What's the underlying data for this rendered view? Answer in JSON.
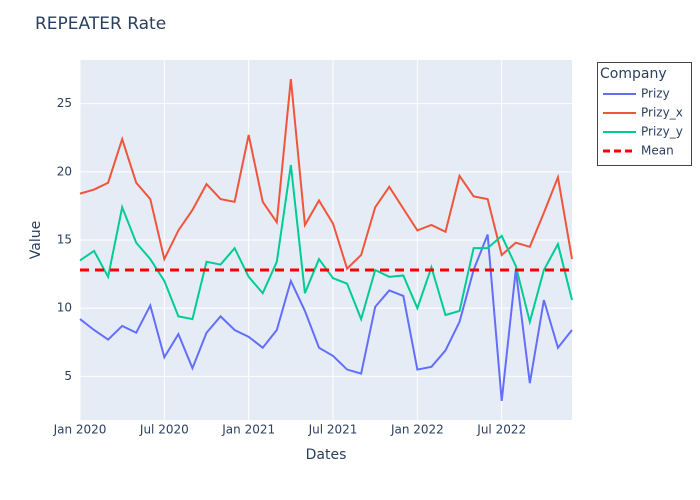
{
  "chart_data": {
    "type": "line",
    "title": "REPEATER Rate",
    "x_label": "Dates",
    "y_label": "Value",
    "legend_title": "Company",
    "legend": "outside-right",
    "grid": true,
    "x": [
      "2020-01",
      "2020-02",
      "2020-03",
      "2020-04",
      "2020-05",
      "2020-06",
      "2020-07",
      "2020-08",
      "2020-09",
      "2020-10",
      "2020-11",
      "2020-12",
      "2021-01",
      "2021-02",
      "2021-03",
      "2021-04",
      "2021-05",
      "2021-06",
      "2021-07",
      "2021-08",
      "2021-09",
      "2021-10",
      "2021-11",
      "2021-12",
      "2022-01",
      "2022-02",
      "2022-03",
      "2022-04",
      "2022-05",
      "2022-06",
      "2022-07",
      "2022-08",
      "2022-09",
      "2022-10",
      "2022-11",
      "2022-12"
    ],
    "xlim": [
      "2020-01",
      "2022-12"
    ],
    "xticks": [
      {
        "value": "2020-01",
        "label": "Jan 2020"
      },
      {
        "value": "2020-07",
        "label": "Jul 2020"
      },
      {
        "value": "2021-01",
        "label": "Jan 2021"
      },
      {
        "value": "2021-07",
        "label": "Jul 2021"
      },
      {
        "value": "2022-01",
        "label": "Jan 2022"
      },
      {
        "value": "2022-07",
        "label": "Jul 2022"
      }
    ],
    "ylim": [
      1.8,
      28.2
    ],
    "yticks": [
      5,
      10,
      15,
      20,
      25
    ],
    "series": [
      {
        "name": "Prizy",
        "color": "#636efa",
        "values": [
          9.2,
          8.4,
          7.7,
          8.7,
          8.2,
          10.2,
          6.4,
          8.1,
          5.6,
          8.2,
          9.4,
          8.4,
          7.9,
          7.1,
          8.4,
          12.0,
          9.8,
          7.1,
          6.5,
          5.5,
          5.2,
          10.1,
          11.3,
          10.9,
          5.5,
          5.7,
          6.9,
          9.0,
          12.8,
          15.4,
          3.2,
          12.8,
          4.5,
          10.6,
          7.1,
          8.4
        ]
      },
      {
        "name": "Prizy_x",
        "color": "#ef553b",
        "values": [
          18.4,
          18.7,
          19.2,
          22.4,
          19.2,
          18.0,
          13.6,
          15.7,
          17.2,
          19.1,
          18.0,
          17.8,
          22.7,
          17.8,
          16.3,
          26.8,
          16.1,
          17.9,
          16.2,
          12.9,
          13.9,
          17.4,
          18.9,
          17.3,
          15.7,
          16.1,
          15.6,
          19.7,
          18.2,
          18.0,
          13.9,
          14.8,
          14.5,
          17.0,
          19.6,
          13.6
        ]
      },
      {
        "name": "Prizy_y",
        "color": "#00cc96",
        "values": [
          13.5,
          14.2,
          12.3,
          17.4,
          14.8,
          13.6,
          12.0,
          9.4,
          9.2,
          13.4,
          13.2,
          14.4,
          12.3,
          11.1,
          13.4,
          20.5,
          11.1,
          13.6,
          12.2,
          11.8,
          9.2,
          12.8,
          12.3,
          12.4,
          10.0,
          13.0,
          9.5,
          9.8,
          14.4,
          14.4,
          15.3,
          13.1,
          9.0,
          12.8,
          14.7,
          10.6
        ]
      },
      {
        "name": "Mean",
        "color": "#ff0000",
        "dash": true,
        "values": [
          12.8,
          12.8,
          12.8,
          12.8,
          12.8,
          12.8,
          12.8,
          12.8,
          12.8,
          12.8,
          12.8,
          12.8,
          12.8,
          12.8,
          12.8,
          12.8,
          12.8,
          12.8,
          12.8,
          12.8,
          12.8,
          12.8,
          12.8,
          12.8,
          12.8,
          12.8,
          12.8,
          12.8,
          12.8,
          12.8,
          12.8,
          12.8,
          12.8,
          12.8,
          12.8,
          12.8
        ]
      }
    ]
  }
}
